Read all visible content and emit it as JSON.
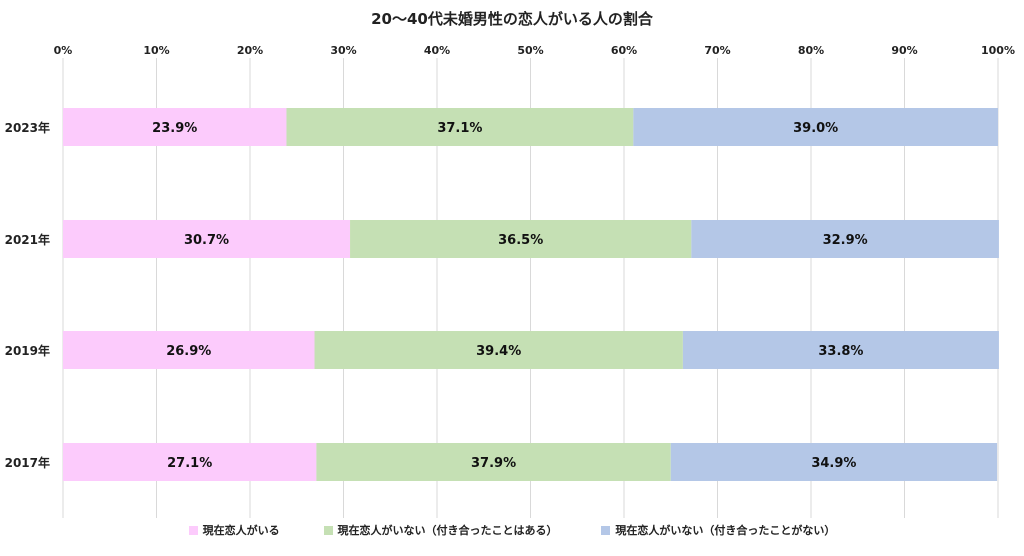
{
  "chart_data": {
    "type": "bar",
    "orientation": "horizontal",
    "stacked": true,
    "title": "20～40代未婚男性の恋人がいる人の割合",
    "categories": [
      "2023年",
      "2021年",
      "2019年",
      "2017年"
    ],
    "series": [
      {
        "name": "現在恋人がいる",
        "color": "#FCCBFC",
        "values": [
          23.9,
          30.7,
          26.9,
          27.1
        ],
        "labels": [
          "23.9%",
          "30.7%",
          "26.9%",
          "27.1%"
        ]
      },
      {
        "name": "現在恋人がいない（付き合ったことはある）",
        "color": "#C5E0B4",
        "values": [
          37.1,
          36.5,
          39.4,
          37.9
        ],
        "labels": [
          "37.1%",
          "36.5%",
          "39.4%",
          "37.9%"
        ]
      },
      {
        "name": "現在恋人がいない（付き合ったことがない）",
        "color": "#B4C7E7",
        "values": [
          39.0,
          32.9,
          33.8,
          34.9
        ],
        "labels": [
          "39.0%",
          "32.9%",
          "33.8%",
          "34.9%"
        ]
      }
    ],
    "xlim": [
      0,
      100
    ],
    "xticks": [
      "0%",
      "10%",
      "20%",
      "30%",
      "40%",
      "50%",
      "60%",
      "70%",
      "80%",
      "90%",
      "100%"
    ],
    "grid": true,
    "legend_position": "bottom"
  }
}
